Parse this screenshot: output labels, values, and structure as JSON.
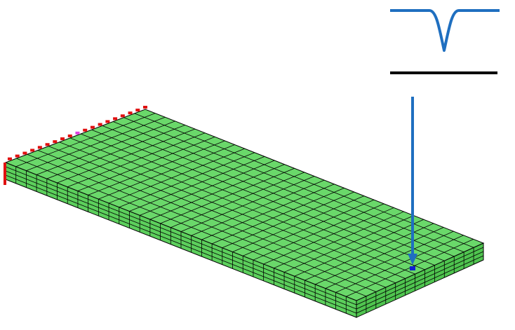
{
  "scene": {
    "mesh": {
      "elements_along_length": 34,
      "elements_across_width": 13,
      "layers_through_thickness": 4
    },
    "colors": {
      "background": "#ffffff",
      "mesh_top_fill": "#6ad86a",
      "mesh_front_fill": "#5ccf5c",
      "mesh_side_fill": "#4fc44f",
      "mesh_lines": "#000000",
      "boundary_condition": "#e01010",
      "boundary_highlight": "#e040e0",
      "load_arrow": "#1f6fc0",
      "pulse_curve": "#1f6fc0",
      "baseline": "#000000",
      "load_point": "#1020d0"
    },
    "icons": {
      "load_arrow": "arrow-down-icon",
      "pulse_curve": "pulse-curve-icon",
      "fixed_support": "fixed-support-icon"
    }
  }
}
